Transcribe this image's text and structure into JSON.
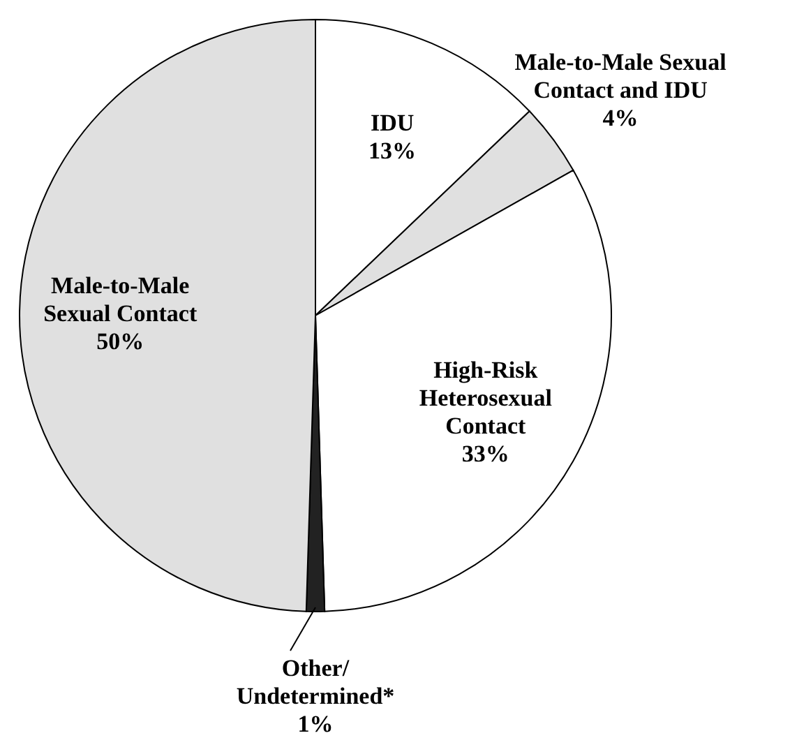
{
  "chart_data": {
    "type": "pie",
    "categories": [
      "IDU",
      "Male-to-Male Sexual Contact and IDU",
      "High-Risk Heterosexual Contact",
      "Other/ Undetermined*",
      "Male-to-Male Sexual Contact"
    ],
    "values": [
      13,
      4,
      33,
      1,
      50
    ],
    "value_labels": [
      "13%",
      "4%",
      "33%",
      "1%",
      "50%"
    ],
    "colors": [
      "#ffffff",
      "#e0e0e0",
      "#ffffff",
      "#222222",
      "#e0e0e0"
    ]
  }
}
